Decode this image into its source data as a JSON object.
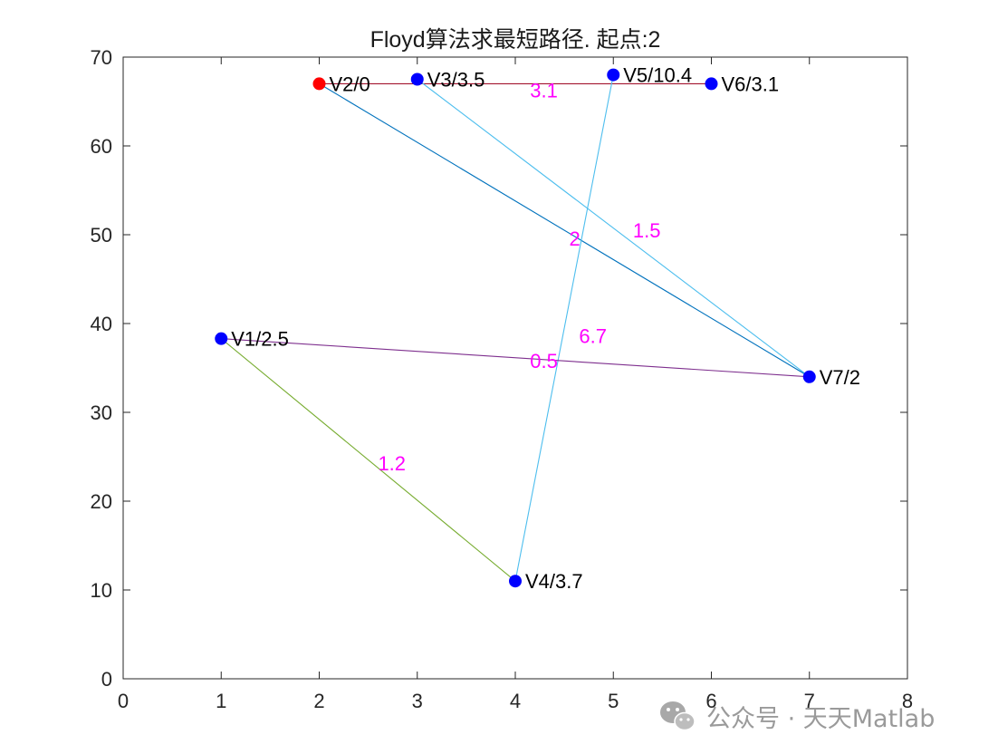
{
  "chart_data": {
    "type": "scatter",
    "title": "Floyd算法求最短路径. 起点:2",
    "xlabel": "",
    "ylabel": "",
    "xlim": [
      0,
      8
    ],
    "ylim": [
      0,
      70
    ],
    "xticks": [
      "0",
      "1",
      "2",
      "3",
      "4",
      "5",
      "6",
      "7",
      "8"
    ],
    "yticks": [
      "0",
      "10",
      "20",
      "30",
      "40",
      "50",
      "60",
      "70"
    ],
    "grid": false,
    "nodes": [
      {
        "label": "V1/2.5",
        "x": 1,
        "y": 38.3,
        "color": "#0000ff"
      },
      {
        "label": "V2/0",
        "x": 2,
        "y": 67,
        "color": "#ff0000"
      },
      {
        "label": "V3/3.5",
        "x": 3,
        "y": 67.5,
        "color": "#0000ff"
      },
      {
        "label": "V4/3.7",
        "x": 4,
        "y": 11,
        "color": "#0000ff"
      },
      {
        "label": "V5/10.4",
        "x": 5,
        "y": 68,
        "color": "#0000ff"
      },
      {
        "label": "V6/3.1",
        "x": 6,
        "y": 67,
        "color": "#0000ff"
      },
      {
        "label": "V7/2",
        "x": 7,
        "y": 34,
        "color": "#0000ff"
      }
    ],
    "edges": [
      {
        "from": 1,
        "to": 5,
        "weight": "3.1",
        "color": "#a2142f",
        "lx": 4.15,
        "ly": 66.3
      },
      {
        "from": 1,
        "to": 6,
        "weight": "2",
        "color": "#0072bd",
        "lx": 4.55,
        "ly": 49.6
      },
      {
        "from": 2,
        "to": 6,
        "weight": "1.5",
        "color": "#4dbeee",
        "lx": 5.2,
        "ly": 50.5
      },
      {
        "from": 3,
        "to": 4,
        "weight": "6.7",
        "color": "#4dbeee",
        "lx": 4.65,
        "ly": 38.6
      },
      {
        "from": 0,
        "to": 6,
        "weight": "0.5",
        "color": "#7e2f8e",
        "lx": 4.15,
        "ly": 35.8
      },
      {
        "from": 0,
        "to": 3,
        "weight": "1.2",
        "color": "#77ac30",
        "lx": 2.6,
        "ly": 24.3
      }
    ],
    "weight_label_color": "#ff00ff"
  },
  "watermark": {
    "text": "公众号 · 天天Matlab",
    "icon": "wechat-icon"
  }
}
